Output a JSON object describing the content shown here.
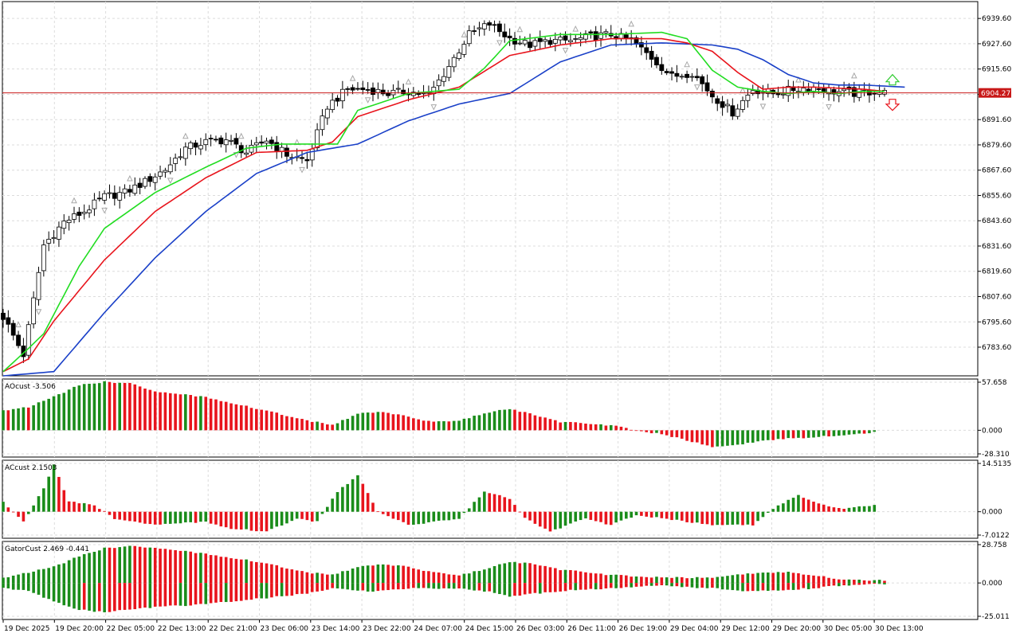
{
  "chart_data": [
    {
      "type": "candlestick",
      "panel": "price",
      "current_price": 6904.27,
      "current_price_label": "6904.27",
      "y_ticks": [
        "6939.60",
        "6927.60",
        "6915.60",
        "6903.60",
        "6891.60",
        "6879.60",
        "6867.60",
        "6855.60",
        "6843.60",
        "6831.60",
        "6819.60",
        "6807.60",
        "6795.60",
        "6783.60"
      ],
      "y_tick_values": [
        6939.6,
        6927.6,
        6915.6,
        6903.6,
        6891.6,
        6879.6,
        6867.6,
        6855.6,
        6843.6,
        6831.6,
        6819.6,
        6807.6,
        6795.6,
        6783.6
      ],
      "ylim": [
        6770.0,
        6947.6
      ],
      "x_labels": [
        "19 Dec 2025",
        "19 Dec 20:00",
        "22 Dec 05:00",
        "22 Dec 13:00",
        "22 Dec 21:00",
        "23 Dec 06:00",
        "23 Dec 14:00",
        "23 Dec 22:00",
        "24 Dec 07:00",
        "24 Dec 15:00",
        "26 Dec 03:00",
        "26 Dec 11:00",
        "26 Dec 19:00",
        "29 Dec 04:00",
        "29 Dec 12:00",
        "29 Dec 20:00",
        "30 Dec 05:00",
        "30 Dec 13:00"
      ],
      "close_path": [
        [
          0,
          6798
        ],
        [
          4,
          6780
        ],
        [
          8,
          6832
        ],
        [
          12,
          6843
        ],
        [
          16,
          6848
        ],
        [
          20,
          6855
        ],
        [
          24,
          6857
        ],
        [
          28,
          6862
        ],
        [
          32,
          6868
        ],
        [
          36,
          6878
        ],
        [
          40,
          6881
        ],
        [
          44,
          6882
        ],
        [
          48,
          6876
        ],
        [
          52,
          6882
        ],
        [
          56,
          6875
        ],
        [
          60,
          6872
        ],
        [
          64,
          6898
        ],
        [
          68,
          6906
        ],
        [
          72,
          6906
        ],
        [
          76,
          6904
        ],
        [
          80,
          6905
        ],
        [
          84,
          6903
        ],
        [
          88,
          6917
        ],
        [
          92,
          6932
        ],
        [
          96,
          6937
        ],
        [
          100,
          6930
        ],
        [
          104,
          6927
        ],
        [
          108,
          6929
        ],
        [
          112,
          6929
        ],
        [
          116,
          6931
        ],
        [
          120,
          6932
        ],
        [
          124,
          6929
        ],
        [
          128,
          6921
        ],
        [
          132,
          6912
        ],
        [
          136,
          6914
        ],
        [
          140,
          6903
        ],
        [
          144,
          6895
        ],
        [
          148,
          6906
        ],
        [
          152,
          6904
        ],
        [
          156,
          6906
        ],
        [
          160,
          6907
        ],
        [
          164,
          6905
        ],
        [
          168,
          6904
        ],
        [
          172,
          6905
        ],
        [
          174,
          6904.27
        ]
      ],
      "jaw_path": [
        [
          0,
          6770
        ],
        [
          10,
          6772
        ],
        [
          20,
          6800
        ],
        [
          30,
          6826
        ],
        [
          40,
          6848
        ],
        [
          50,
          6866
        ],
        [
          60,
          6876
        ],
        [
          70,
          6880
        ],
        [
          80,
          6891
        ],
        [
          90,
          6899
        ],
        [
          100,
          6904
        ],
        [
          110,
          6919
        ],
        [
          120,
          6927
        ],
        [
          130,
          6928
        ],
        [
          140,
          6927
        ],
        [
          145,
          6925
        ],
        [
          150,
          6920
        ],
        [
          155,
          6913
        ],
        [
          160,
          6909
        ],
        [
          165,
          6908
        ],
        [
          170,
          6908
        ],
        [
          178,
          6907
        ]
      ],
      "teeth_path": [
        [
          0,
          6772
        ],
        [
          5,
          6778
        ],
        [
          10,
          6796
        ],
        [
          20,
          6825
        ],
        [
          30,
          6848
        ],
        [
          40,
          6864
        ],
        [
          50,
          6876
        ],
        [
          60,
          6877
        ],
        [
          65,
          6881
        ],
        [
          70,
          6893
        ],
        [
          80,
          6901
        ],
        [
          90,
          6907
        ],
        [
          100,
          6922
        ],
        [
          110,
          6927
        ],
        [
          120,
          6930
        ],
        [
          130,
          6930
        ],
        [
          135,
          6928
        ],
        [
          140,
          6924
        ],
        [
          145,
          6914
        ],
        [
          150,
          6906
        ],
        [
          155,
          6907
        ],
        [
          160,
          6907
        ],
        [
          170,
          6906
        ],
        [
          174,
          6905
        ]
      ],
      "lips_path": [
        [
          0,
          6772
        ],
        [
          5,
          6783
        ],
        [
          8,
          6790
        ],
        [
          15,
          6822
        ],
        [
          20,
          6840
        ],
        [
          30,
          6857
        ],
        [
          40,
          6869
        ],
        [
          48,
          6878
        ],
        [
          55,
          6880
        ],
        [
          60,
          6880
        ],
        [
          66,
          6880
        ],
        [
          70,
          6896
        ],
        [
          80,
          6904
        ],
        [
          90,
          6906
        ],
        [
          95,
          6916
        ],
        [
          100,
          6929
        ],
        [
          110,
          6932
        ],
        [
          120,
          6932
        ],
        [
          130,
          6933
        ],
        [
          135,
          6930
        ],
        [
          140,
          6915
        ],
        [
          145,
          6907
        ],
        [
          150,
          6905
        ],
        [
          155,
          6904
        ],
        [
          160,
          6905
        ],
        [
          165,
          6904
        ],
        [
          170,
          6905
        ],
        [
          174,
          6905
        ]
      ],
      "colors": {
        "jaw": "#1a40c8",
        "teeth": "#e8141c",
        "lips": "#22dd22",
        "price_line": "#c81818",
        "price_label_bg": "#c81818",
        "up_arrow": "#33cc33",
        "down_arrow": "#e8141c",
        "fractal": "#a8a8a8",
        "candle_bull": "#ffffff",
        "candle_bear": "#000000"
      }
    },
    {
      "type": "bar",
      "panel": "AOcust",
      "title": "AOcust -3.506",
      "y_ticks": [
        "57.658",
        "0.000",
        "-28.310"
      ],
      "ylim": [
        -28.31,
        57.658
      ],
      "values_path": [
        [
          0,
          24
        ],
        [
          5,
          28
        ],
        [
          10,
          40
        ],
        [
          15,
          54
        ],
        [
          20,
          58
        ],
        [
          25,
          57
        ],
        [
          30,
          46
        ],
        [
          40,
          40
        ],
        [
          50,
          26
        ],
        [
          60,
          12
        ],
        [
          65,
          6
        ],
        [
          70,
          20
        ],
        [
          75,
          22
        ],
        [
          80,
          16
        ],
        [
          85,
          10
        ],
        [
          90,
          12
        ],
        [
          95,
          20
        ],
        [
          100,
          26
        ],
        [
          105,
          18
        ],
        [
          110,
          10
        ],
        [
          120,
          6
        ],
        [
          125,
          0
        ],
        [
          130,
          -5
        ],
        [
          135,
          -12
        ],
        [
          140,
          -20
        ],
        [
          145,
          -18
        ],
        [
          150,
          -12
        ],
        [
          155,
          -10
        ],
        [
          165,
          -6
        ],
        [
          170,
          -4
        ],
        [
          172,
          -2
        ]
      ],
      "colors": {
        "up": "#1a8c1a",
        "down": "#e8141c"
      }
    },
    {
      "type": "bar",
      "panel": "ACcust",
      "title": "ACcust 2.1503",
      "y_ticks": [
        "14.5135",
        "0.000",
        "-7.0122"
      ],
      "ylim": [
        -7.0122,
        14.5135
      ],
      "values_path": [
        [
          0,
          3
        ],
        [
          4,
          -3
        ],
        [
          8,
          7
        ],
        [
          10,
          14
        ],
        [
          13,
          3
        ],
        [
          18,
          2
        ],
        [
          22,
          -2
        ],
        [
          30,
          -4
        ],
        [
          40,
          -3
        ],
        [
          45,
          -5
        ],
        [
          52,
          -6
        ],
        [
          58,
          -2
        ],
        [
          62,
          -3
        ],
        [
          66,
          6
        ],
        [
          70,
          11
        ],
        [
          74,
          0
        ],
        [
          80,
          -4
        ],
        [
          90,
          -2
        ],
        [
          95,
          6
        ],
        [
          100,
          4
        ],
        [
          103,
          -2
        ],
        [
          108,
          -6
        ],
        [
          115,
          -2
        ],
        [
          120,
          -4
        ],
        [
          125,
          -1
        ],
        [
          130,
          -2
        ],
        [
          140,
          -4
        ],
        [
          148,
          -4
        ],
        [
          152,
          1
        ],
        [
          157,
          5
        ],
        [
          162,
          2
        ],
        [
          166,
          1
        ],
        [
          172,
          2
        ]
      ],
      "colors": {
        "up": "#1a8c1a",
        "down": "#e8141c"
      }
    },
    {
      "type": "bar",
      "panel": "GatorCust",
      "title": "GatorCust 2.469 -0.441",
      "y_ticks": [
        "28.758",
        "0.000",
        "-25.011"
      ],
      "ylim": [
        -25.011,
        28.758
      ],
      "upper_path": [
        [
          0,
          4
        ],
        [
          5,
          8
        ],
        [
          10,
          12
        ],
        [
          15,
          20
        ],
        [
          20,
          26
        ],
        [
          25,
          28
        ],
        [
          30,
          26
        ],
        [
          40,
          22
        ],
        [
          50,
          16
        ],
        [
          60,
          8
        ],
        [
          65,
          6
        ],
        [
          70,
          12
        ],
        [
          75,
          14
        ],
        [
          80,
          12
        ],
        [
          85,
          8
        ],
        [
          90,
          6
        ],
        [
          95,
          10
        ],
        [
          100,
          16
        ],
        [
          105,
          14
        ],
        [
          110,
          10
        ],
        [
          120,
          6
        ],
        [
          130,
          4
        ],
        [
          140,
          4
        ],
        [
          145,
          6
        ],
        [
          150,
          8
        ],
        [
          155,
          8
        ],
        [
          160,
          6
        ],
        [
          165,
          3
        ],
        [
          170,
          2
        ],
        [
          174,
          2
        ]
      ],
      "lower_path": [
        [
          0,
          -4
        ],
        [
          5,
          -6
        ],
        [
          10,
          -14
        ],
        [
          15,
          -20
        ],
        [
          20,
          -22
        ],
        [
          25,
          -20
        ],
        [
          30,
          -18
        ],
        [
          40,
          -16
        ],
        [
          50,
          -12
        ],
        [
          60,
          -8
        ],
        [
          65,
          -4
        ],
        [
          70,
          -6
        ],
        [
          75,
          -6
        ],
        [
          80,
          -4
        ],
        [
          85,
          -4
        ],
        [
          90,
          -4
        ],
        [
          95,
          -6
        ],
        [
          100,
          -10
        ],
        [
          105,
          -8
        ],
        [
          110,
          -6
        ],
        [
          120,
          -4
        ],
        [
          130,
          -2
        ],
        [
          140,
          -4
        ],
        [
          145,
          -6
        ],
        [
          150,
          -6
        ],
        [
          155,
          -5
        ],
        [
          160,
          -4
        ],
        [
          165,
          -2
        ],
        [
          170,
          -1
        ],
        [
          174,
          -1
        ]
      ],
      "colors": {
        "up": "#1a8c1a",
        "down": "#e8141c"
      }
    }
  ]
}
